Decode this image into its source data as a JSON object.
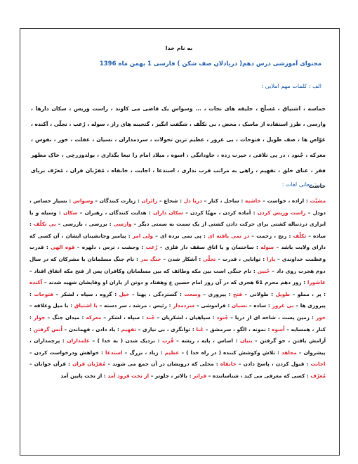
{
  "header": "به نام خدا",
  "title": "محتوای آموزشی درس دهم( دریادلان صف شکن ) فارسی 1 بهمن ماه 1396",
  "spelling": {
    "heading": "الف : کلمات مهم املایی :",
    "text": "حماسه ، اشتیاق ، مُسلّح ، جلیقه های نجات ، ... وسواس یک قاضی می کاوند ، راست وریس ، سکان دارها ، وارسی ، طرز استفاده از ماسک ، محض ، بی تکلّف ، شگفت انگیز ، گنجینه های راز ، سوله ، رُعب ، تجلّی ، آکنده ، غوّاص ها ، صف طویل ، فتوحات ، بی غرور ، عظیم ترین تحولات ، سردمداران ، نسیان ، غفلت ، خور ، نفوس ، معرکه ، جُنود ، در پی تلافی ، حیرت زده ، جاودانگی ، اسوه ، میلاد امام را تبعا بگذاری ، بولدوزرچی ، خاک مطهر فقر ، غنای خلق ، تفهیم ، راهی به مراتب قرب نداری ، استدعا ، اجابت ، خانقاه ، مُقرّبان قران ، مُعرّف برپای خاست"
  },
  "vocabulary": {
    "heading": "ب: معانی لغات :",
    "entries": [
      {
        "word": "مشیّت",
        "meaning": "اراده ، خواست"
      },
      {
        "word": "حاشیه",
        "meaning": "ساحل ، کنار"
      },
      {
        "word": "دریا دل",
        "meaning": "شجاع"
      },
      {
        "word": "زائران",
        "meaning": "زیارت کنندگان"
      },
      {
        "word": "وسواس",
        "meaning": "بسیار حساس ، دودل"
      },
      {
        "word": "راست وریس کردن",
        "meaning": "آماده کردن ، مهیّا کردن"
      },
      {
        "word": "سکان داران",
        "meaning": "هدایت کنندگان ، رهبران"
      },
      {
        "word": "سکان",
        "meaning": "وسیله و یا ابزاری دردنباله کشتی برای حرکت دادن کشتی از یک سمت به سمتی دیگر"
      },
      {
        "word": "وارسی",
        "meaning": "بررسی ، بازرسی"
      },
      {
        "word": "بی تکلّف",
        "meaning": "ساده"
      },
      {
        "word": "تکلّف",
        "meaning": "رنج ، زحمت"
      },
      {
        "word": "در نمی یافته ای",
        "meaning": "پی نمی برده ای"
      },
      {
        "word": "ولی امر",
        "meaning": "پیامبر وجانشینان ایشان ، آن کسی که دارای ولایت باشد"
      },
      {
        "word": "سوله",
        "meaning": "ساختمان و یا اتاق سقف دار فلزی"
      },
      {
        "word": "رُعب",
        "meaning": "وحشت ، ترس ، دلهره"
      },
      {
        "word": "قوه الهی",
        "meaning": "قدرت وعظمت خداوندی"
      },
      {
        "word": "یارا",
        "meaning": "توانایی ، قدرت"
      },
      {
        "word": "تجلّی",
        "meaning": "آشکار شدن"
      },
      {
        "word": "جنگ بدر",
        "meaning": "نام جنگ مسلمانان با مشرکان که در سال دوم هجرت روی داد"
      },
      {
        "word": "حُنین",
        "meaning": "نام جنگی است بین مکه وطائف که بین مسلمانان وکافران پس از فتح مکه اتفاق افتاد"
      },
      {
        "word": "عاشورا",
        "meaning": "روز دهم محرم 61 هجری که در آن روز امام حسین ع وهفتاد و دوتن از یاران او وفایشان شهید شدند"
      },
      {
        "word": "آکنده",
        "meaning": "پر ، مملو"
      },
      {
        "word": "طویل",
        "meaning": "طولانی"
      },
      {
        "word": "فتح",
        "meaning": "پیروزی"
      },
      {
        "word": "وسعت",
        "meaning": "گستردگی ، پهنا"
      },
      {
        "word": "خیل",
        "meaning": "گروه ، سپاه ، لشکر"
      },
      {
        "word": "فتوحات",
        "meaning": "پیروزی ها"
      },
      {
        "word": "بی غرور",
        "meaning": "ساده"
      },
      {
        "word": "نسیان",
        "meaning": "فراموشی"
      },
      {
        "word": "سردمدار",
        "meaning": "رئیس ، مرشد ، سر دسته"
      },
      {
        "word": "با اشتیاق",
        "meaning": "با میل وعلاقه"
      },
      {
        "word": "خور",
        "meaning": "زمین پست ، شاخه ای از دریا"
      },
      {
        "word": "جُنود",
        "meaning": "سپاهیان ، لشکریان"
      },
      {
        "word": "جُند",
        "meaning": "سپاه ، لشکر"
      },
      {
        "word": "معرکه",
        "meaning": "میدان جنگ"
      },
      {
        "word": "جوار",
        "meaning": "کنار ، همسایه"
      },
      {
        "word": "اُسوه",
        "meaning": "نمونه ، الگو ، سرمشق"
      },
      {
        "word": "غَنا",
        "meaning": "توانگری ، بی نیازی"
      },
      {
        "word": "تفهیم",
        "meaning": "یاد دادن ، فهماندن"
      },
      {
        "word": "اُنس گرفتن",
        "meaning": "آرامش یافتن ، خو گرفتن"
      },
      {
        "word": "بنیان",
        "meaning": "اساس ، پایه ، ریشه"
      },
      {
        "word": "قُرب",
        "meaning": "نزدیک شدن ( به خدا )"
      },
      {
        "word": "علمداران",
        "meaning": "پرچمداران ، پیشروان"
      },
      {
        "word": "مجاهد",
        "meaning": "تلاش وکوشش کننده ( در راه خدا )"
      },
      {
        "word": "عظیم",
        "meaning": "زیاد ، بزرگ"
      },
      {
        "word": "استدعا",
        "meaning": "خواهش ودرخواست کردن"
      },
      {
        "word": "اجابت",
        "meaning": "قبول کردن ، پاسخ دادن"
      },
      {
        "word": "خانقاه",
        "meaning": "محلی که درویشان در آن جمع می شوند"
      },
      {
        "word": "مُقرّبان قران",
        "meaning": "قرآن خوانان"
      },
      {
        "word": "مُعرّف",
        "meaning": "کسی که معرفی می کند ، شناساننده"
      },
      {
        "word": "فراتر",
        "meaning": "بالاتر ، جلوتر"
      },
      {
        "word": "از تخت فرود آمد",
        "meaning": "از تخت پایین آمد"
      }
    ]
  }
}
